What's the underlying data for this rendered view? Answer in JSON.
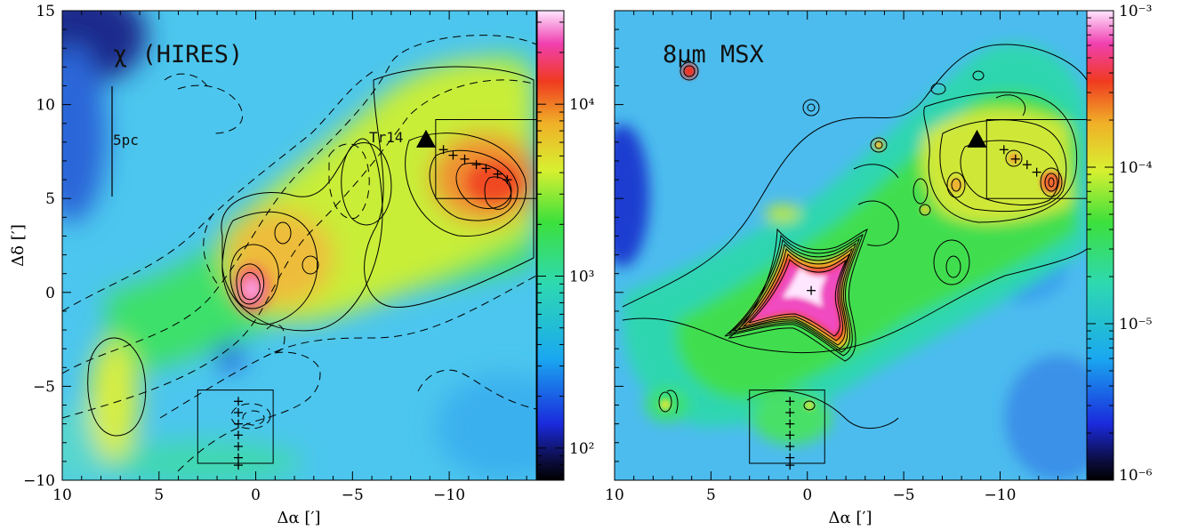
{
  "chart_data": [
    {
      "type": "heatmap",
      "panel_label": "χ (HIRES)",
      "xlabel": "Δα [′]",
      "ylabel": "Δδ [′]",
      "xlim": [
        10,
        -14.5
      ],
      "ylim": [
        -10,
        15
      ],
      "x_ticks": [
        10,
        5,
        0,
        -5,
        -10
      ],
      "x_tick_labels": [
        "10",
        "5",
        "0",
        "−5",
        "−10"
      ],
      "y_ticks": [
        -10,
        -5,
        0,
        5,
        10,
        15
      ],
      "y_tick_labels": [
        "−10",
        "−5",
        "0",
        "5",
        "10",
        "15"
      ],
      "colorbar": {
        "scale": "log",
        "range": [
          65,
          35000
        ],
        "ticks": [
          100,
          1000,
          10000
        ],
        "tick_labels": [
          "10²",
          "10³",
          "10⁴"
        ]
      },
      "scale_bar_label": "5pc",
      "cluster_label": "Tr14",
      "cluster_marker": {
        "x": -8.8,
        "y": 8.0
      },
      "boxes": [
        {
          "x1": -9.3,
          "x2": -14.5,
          "y1": 5.0,
          "y2": 9.2
        },
        {
          "x1": 3.0,
          "x2": -0.9,
          "y1": -9.1,
          "y2": -5.2
        }
      ],
      "cross_markers": [
        {
          "x": -9.7,
          "y": 7.6
        },
        {
          "x": -10.2,
          "y": 7.3
        },
        {
          "x": -10.8,
          "y": 7.1
        },
        {
          "x": -11.4,
          "y": 6.8
        },
        {
          "x": -11.9,
          "y": 6.6
        },
        {
          "x": -12.5,
          "y": 6.3
        },
        {
          "x": -13.0,
          "y": 6.0
        },
        {
          "x": 0.9,
          "y": -5.8
        },
        {
          "x": 0.9,
          "y": -6.4
        },
        {
          "x": 0.9,
          "y": -7.0
        },
        {
          "x": 0.9,
          "y": -7.6
        },
        {
          "x": 0.9,
          "y": -8.2
        },
        {
          "x": 0.9,
          "y": -8.8
        },
        {
          "x": 0.9,
          "y": -9.2
        }
      ]
    },
    {
      "type": "heatmap",
      "panel_label": "8μm MSX",
      "xlabel": "Δα [′]",
      "xlim": [
        10,
        -14.5
      ],
      "ylim": [
        -10,
        15
      ],
      "x_ticks": [
        10,
        5,
        0,
        -5,
        -10
      ],
      "x_tick_labels": [
        "10",
        "5",
        "0",
        "−5",
        "−10"
      ],
      "y_ticks": [
        -10,
        -5,
        0,
        5,
        10,
        15
      ],
      "colorbar": {
        "scale": "log",
        "range": [
          1e-06,
          0.001
        ],
        "ticks": [
          1e-06,
          1e-05,
          0.0001,
          0.001
        ],
        "tick_labels": [
          "10⁻⁶",
          "10⁻⁵",
          "10⁻⁴",
          "10⁻³"
        ]
      },
      "cluster_marker": {
        "x": -8.8,
        "y": 8.0
      },
      "boxes": [
        {
          "x1": -9.3,
          "x2": -14.5,
          "y1": 5.0,
          "y2": 9.2
        },
        {
          "x1": 3.0,
          "x2": -0.9,
          "y1": -9.1,
          "y2": -5.2
        }
      ],
      "cross_markers": [
        {
          "x": -10.2,
          "y": 7.6
        },
        {
          "x": -10.8,
          "y": 7.1
        },
        {
          "x": -11.4,
          "y": 6.8
        },
        {
          "x": -11.9,
          "y": 6.4
        },
        {
          "x": -0.2,
          "y": 0.1
        },
        {
          "x": 0.9,
          "y": -5.8
        },
        {
          "x": 0.9,
          "y": -6.4
        },
        {
          "x": 0.9,
          "y": -7.0
        },
        {
          "x": 0.9,
          "y": -7.6
        },
        {
          "x": 0.9,
          "y": -8.2
        },
        {
          "x": 0.9,
          "y": -8.8
        },
        {
          "x": 0.9,
          "y": -9.2
        }
      ]
    }
  ]
}
